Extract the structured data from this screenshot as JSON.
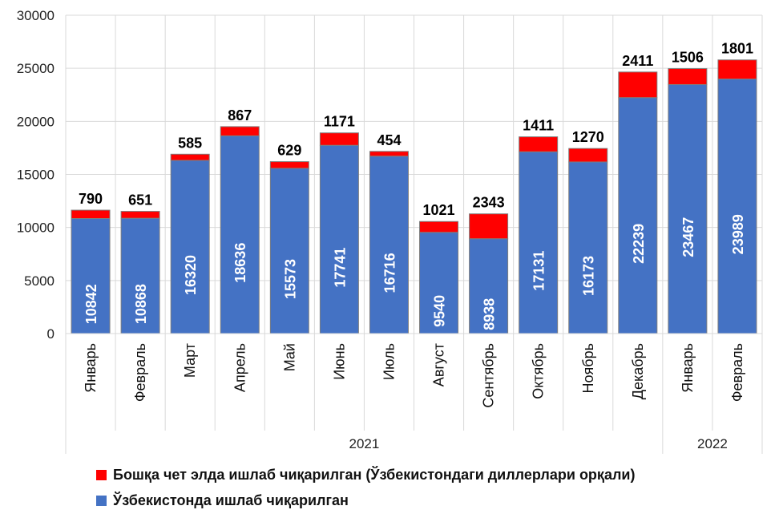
{
  "chart_data": {
    "type": "bar",
    "stacked": true,
    "categories": [
      "Январь",
      "Февраль",
      "Март",
      "Апрель",
      "Май",
      "Июнь",
      "Июль",
      "Август",
      "Сентябрь",
      "Октябрь",
      "Ноябрь",
      "Декабрь",
      "Январь",
      "Февраль"
    ],
    "year_groups": [
      {
        "label": "2021",
        "count": 12
      },
      {
        "label": "2022",
        "count": 2
      }
    ],
    "series": [
      {
        "name": "Ўзбекистонда ишлаб чиқарилган",
        "color": "#4472C4",
        "values": [
          10842,
          10868,
          16320,
          18636,
          15573,
          17741,
          16716,
          9540,
          8938,
          17131,
          16173,
          22239,
          23467,
          23989
        ]
      },
      {
        "name": "Бошқа чет элда ишлаб чиқарилган (Ўзбекистондаги диллерлари орқали)",
        "color": "#FF0000",
        "values": [
          790,
          651,
          585,
          867,
          629,
          1171,
          454,
          1021,
          2343,
          1411,
          1270,
          2411,
          1506,
          1801
        ]
      }
    ],
    "legend_order": [
      1,
      0
    ],
    "ylim": [
      0,
      30000
    ],
    "yticks": [
      0,
      5000,
      10000,
      15000,
      20000,
      25000,
      30000
    ],
    "grid": true,
    "legend_position": "bottom",
    "data_labels": true
  }
}
